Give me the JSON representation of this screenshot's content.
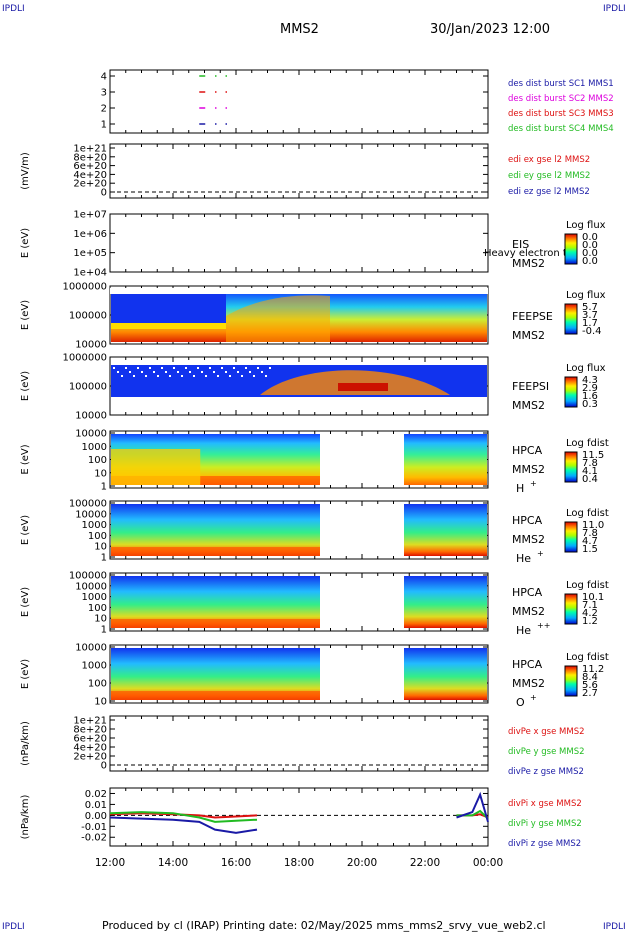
{
  "corners": {
    "tl": "IPDLI",
    "tr": "IPDLI",
    "bl": "IPDLI",
    "br": "IPDLI"
  },
  "header": {
    "mission": "MMS2",
    "datetime": "30/Jan/2023 12:00"
  },
  "footer": "Produced by cl (IRAP)   Printing date: 02/May/2025   mms_mms2_srvy_vue_web2.cl",
  "colors": {
    "red": "#dd1111",
    "green": "#22bb22",
    "blue": "#1a1aa6",
    "magenta": "#dd00dd"
  },
  "chart_data": {
    "type": "multi-panel time series",
    "x_ticks": [
      "12:00",
      "14:00",
      "16:00",
      "18:00",
      "20:00",
      "22:00",
      "00:00"
    ],
    "panels": [
      {
        "id": "burst",
        "type": "line",
        "ylabel": "",
        "yticks": [
          "4",
          "3",
          "2",
          "1"
        ],
        "legend": [
          {
            "text": "des dist burst SC1 MMS1",
            "color": "#1a1aa6"
          },
          {
            "text": "des dist burst SC2 MMS2",
            "color": "#dd00dd"
          },
          {
            "text": "des dist burst SC3 MMS3",
            "color": "#dd1111"
          },
          {
            "text": "des dist burst SC4 MMS4",
            "color": "#22bb22"
          }
        ],
        "series": [
          {
            "level": 4,
            "color": "#22bb22",
            "x": [
              "14:50",
              "15:20",
              "15:40"
            ]
          },
          {
            "level": 3,
            "color": "#dd1111",
            "x": [
              "14:50",
              "15:20",
              "15:40"
            ]
          },
          {
            "level": 2,
            "color": "#dd00dd",
            "x": [
              "14:50",
              "15:20",
              "15:40"
            ]
          },
          {
            "level": 1,
            "color": "#1a1aa6",
            "x": [
              "14:50",
              "15:20",
              "15:40"
            ]
          }
        ]
      },
      {
        "id": "edi",
        "type": "line",
        "ylabel": "(mV/m)",
        "yticks": [
          "1e+21",
          "8e+20",
          "6e+20",
          "4e+20",
          "2e+20",
          "0"
        ],
        "legend": [
          {
            "text": "edi ex gse l2 MMS2",
            "color": "#dd1111"
          },
          {
            "text": "edi ey gse l2 MMS2",
            "color": "#22bb22"
          },
          {
            "text": "edi ez gse l2 MMS2",
            "color": "#1a1aa6"
          }
        ]
      },
      {
        "id": "eis",
        "type": "heatmap",
        "ylabel": "E (eV)",
        "yticks": [
          "1e+07",
          "1e+06",
          "1e+05",
          "1e+04"
        ],
        "instrument": [
          "EIS",
          "MMS2"
        ],
        "overlay": "Heavy electron to",
        "cbar": {
          "title": "Log flux",
          "ticks": [
            "0.0",
            "0.0",
            "0.0",
            "0.0"
          ]
        }
      },
      {
        "id": "feepse",
        "type": "heatmap",
        "ylabel": "E (eV)",
        "yticks": [
          "1000000",
          "100000",
          "10000"
        ],
        "instrument": [
          "FEEPSE",
          "MMS2"
        ],
        "cbar": {
          "title": "Log flux",
          "ticks": [
            "5.7",
            "3.7",
            "1.7",
            "-0.4"
          ]
        }
      },
      {
        "id": "feepsi",
        "type": "heatmap",
        "ylabel": "E (eV)",
        "yticks": [
          "1000000",
          "100000",
          "10000"
        ],
        "instrument": [
          "FEEPSI",
          "MMS2"
        ],
        "cbar": {
          "title": "Log flux",
          "ticks": [
            "4.3",
            "2.9",
            "1.6",
            "0.3"
          ]
        }
      },
      {
        "id": "hpca_h",
        "type": "heatmap",
        "ylabel": "E (eV)",
        "yticks": [
          "10000",
          "1000",
          "100",
          "10",
          "1"
        ],
        "instrument": [
          "HPCA",
          "MMS2"
        ],
        "species": "H",
        "charge": "+",
        "cbar": {
          "title": "Log fdist",
          "ticks": [
            "11.5",
            "7.8",
            "4.1",
            "0.4"
          ]
        }
      },
      {
        "id": "hpca_he",
        "type": "heatmap",
        "ylabel": "E (eV)",
        "yticks": [
          "100000",
          "10000",
          "1000",
          "100",
          "10",
          "1"
        ],
        "instrument": [
          "HPCA",
          "MMS2"
        ],
        "species": "He",
        "charge": "+",
        "cbar": {
          "title": "Log fdist",
          "ticks": [
            "11.0",
            "7.8",
            "4.7",
            "1.5"
          ]
        }
      },
      {
        "id": "hpca_hepp",
        "type": "heatmap",
        "ylabel": "E (eV)",
        "yticks": [
          "100000",
          "10000",
          "1000",
          "100",
          "10",
          "1"
        ],
        "instrument": [
          "HPCA",
          "MMS2"
        ],
        "species": "He",
        "charge": "++",
        "cbar": {
          "title": "Log fdist",
          "ticks": [
            "10.1",
            "7.1",
            "4.2",
            "1.2"
          ]
        }
      },
      {
        "id": "hpca_o",
        "type": "heatmap",
        "ylabel": "E (eV)",
        "yticks": [
          "10000",
          "1000",
          "100",
          "10"
        ],
        "instrument": [
          "HPCA",
          "MMS2"
        ],
        "species": "O",
        "charge": "+",
        "cbar": {
          "title": "Log fdist",
          "ticks": [
            "11.2",
            "8.4",
            "5.6",
            "2.7"
          ]
        }
      },
      {
        "id": "divpe",
        "type": "line",
        "ylabel": "(nPa/km)",
        "yticks": [
          "1e+21",
          "8e+20",
          "6e+20",
          "4e+20",
          "2e+20",
          "0"
        ],
        "legend": [
          {
            "text": "divPe x gse MMS2",
            "color": "#dd1111"
          },
          {
            "text": "divPe y gse MMS2",
            "color": "#22bb22"
          },
          {
            "text": "divPe z gse MMS2",
            "color": "#1a1aa6"
          }
        ]
      },
      {
        "id": "divpi",
        "type": "line",
        "ylabel": "(nPa/km)",
        "yticks": [
          "0.02",
          "0.01",
          "0.00",
          "-0.01",
          "-0.02"
        ],
        "ylim": [
          -0.028,
          0.025
        ],
        "legend": [
          {
            "text": "divPi x gse MMS2",
            "color": "#dd1111"
          },
          {
            "text": "divPi y gse MMS2",
            "color": "#22bb22"
          },
          {
            "text": "divPi z gse MMS2",
            "color": "#1a1aa6"
          }
        ],
        "series": [
          {
            "name": "divPi x gse MMS2",
            "color": "#dd1111",
            "x": [
              "12:00",
              "13:00",
              "14:00",
              "14:50",
              "15:20",
              "16:00",
              "16:40",
              "23:00",
              "23:30",
              "23:45",
              "24:00"
            ],
            "y": [
              0.001,
              0.002,
              0.001,
              0.0,
              -0.002,
              -0.001,
              0.0,
              0.0,
              0.0,
              0.001,
              -0.002
            ]
          },
          {
            "name": "divPi y gse MMS2",
            "color": "#22bb22",
            "x": [
              "12:00",
              "13:00",
              "14:00",
              "14:50",
              "15:20",
              "16:00",
              "16:40",
              "23:00",
              "23:30",
              "23:45",
              "24:00"
            ],
            "y": [
              0.002,
              0.003,
              0.002,
              -0.002,
              -0.006,
              -0.005,
              -0.004,
              0.0,
              0.0,
              0.004,
              -0.003
            ]
          },
          {
            "name": "divPi z gse MMS2",
            "color": "#1a1aa6",
            "x": [
              "12:00",
              "13:00",
              "14:00",
              "14:50",
              "15:20",
              "16:00",
              "16:40",
              "23:00",
              "23:30",
              "23:45",
              "24:00"
            ],
            "y": [
              -0.002,
              -0.003,
              -0.004,
              -0.006,
              -0.013,
              -0.016,
              -0.013,
              -0.002,
              0.003,
              0.019,
              -0.006
            ]
          }
        ]
      }
    ]
  }
}
